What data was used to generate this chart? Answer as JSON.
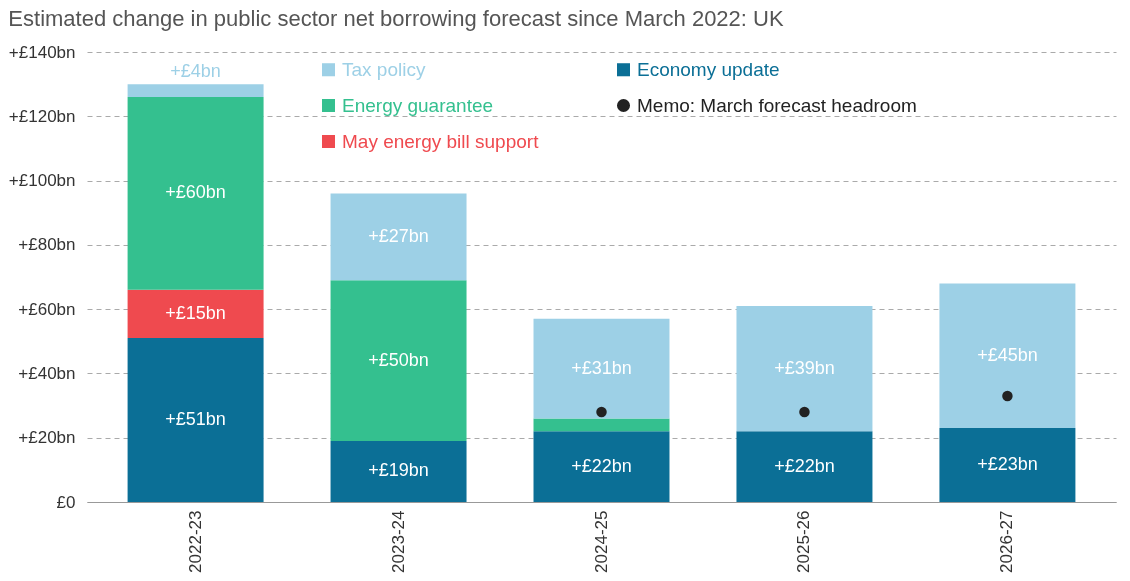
{
  "chart_data": {
    "type": "bar",
    "title": "Estimated change in public sector net borrowing forecast since March 2022: UK",
    "categories": [
      "2022-23",
      "2023-24",
      "2024-25",
      "2025-26",
      "2026-27"
    ],
    "stacked": true,
    "grid": "y",
    "legend": "top",
    "ylim": [
      0,
      140
    ],
    "yticks": [
      {
        "value": 0,
        "label": "£0"
      },
      {
        "value": 20,
        "label": "+£20bn"
      },
      {
        "value": 40,
        "label": "+£40bn"
      },
      {
        "value": 60,
        "label": "+£60bn"
      },
      {
        "value": 80,
        "label": "+£80bn"
      },
      {
        "value": 100,
        "label": "+£100bn"
      },
      {
        "value": 120,
        "label": "+£120bn"
      },
      {
        "value": 140,
        "label": "+£140bn"
      }
    ],
    "series": [
      {
        "name": "Economy update",
        "color": "#0b6f96",
        "values": [
          51,
          19,
          22,
          22,
          23
        ],
        "value_labels": [
          "+£51bn",
          "+£19bn",
          "+£22bn",
          "+£22bn",
          "+£23bn"
        ]
      },
      {
        "name": "May energy bill support",
        "color": "#ef4a4f",
        "values": [
          15,
          null,
          null,
          null,
          null
        ],
        "value_labels": [
          "+£15bn",
          null,
          null,
          null,
          null
        ]
      },
      {
        "name": "Energy guarantee",
        "color": "#34c08f",
        "values": [
          60,
          50,
          4,
          null,
          null
        ],
        "value_labels": [
          "+£60bn",
          "+£50bn",
          null,
          null,
          null
        ]
      },
      {
        "name": "Tax policy",
        "color": "#9dd0e6",
        "values": [
          4,
          27,
          31,
          39,
          45
        ],
        "value_labels": [
          "+£4bn",
          "+£27bn",
          "+£31bn",
          "+£39bn",
          "+£45bn"
        ]
      },
      {
        "name": "Memo: March forecast headroom",
        "type": "scatter",
        "marker": "circle",
        "color": "#222222",
        "values": [
          null,
          null,
          28,
          28,
          33
        ]
      }
    ]
  }
}
